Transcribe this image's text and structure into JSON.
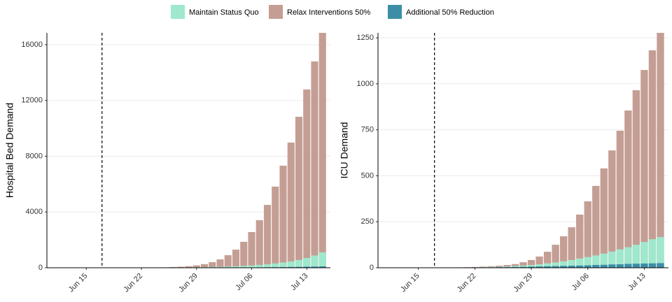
{
  "chart_data": [
    {
      "type": "bar",
      "y_label": "Hospital Bed Demand",
      "x": [
        "Jun 18",
        "Jun 19",
        "Jun 20",
        "Jun 21",
        "Jun 22",
        "Jun 23",
        "Jun 24",
        "Jun 25",
        "Jun 26",
        "Jun 27",
        "Jun 28",
        "Jun 29",
        "Jun 30",
        "Jul 01",
        "Jul 02",
        "Jul 03",
        "Jul 04",
        "Jul 05",
        "Jul 06",
        "Jul 07",
        "Jul 08",
        "Jul 09",
        "Jul 10",
        "Jul 11",
        "Jul 12",
        "Jul 13",
        "Jul 14",
        "Jul 15"
      ],
      "series": [
        {
          "name": "Maintain Status Quo",
          "color": "#9fe8cd",
          "values": [
            1,
            1,
            2,
            3,
            4,
            6,
            8,
            11,
            15,
            20,
            26,
            34,
            44,
            56,
            71,
            89,
            110,
            135,
            165,
            205,
            250,
            310,
            380,
            460,
            560,
            700,
            880,
            1100
          ]
        },
        {
          "name": "Relax Interventions 50%",
          "color": "#c49e94",
          "values": [
            1,
            2,
            3,
            4,
            7,
            11,
            18,
            28,
            45,
            70,
            110,
            170,
            260,
            400,
            600,
            900,
            1300,
            1860,
            2560,
            3410,
            4510,
            5820,
            7320,
            8980,
            10830,
            12790,
            14800,
            16850
          ]
        },
        {
          "name": "Additional 50% Reduction",
          "color": "#3c8ea6",
          "values": [
            0,
            0,
            0,
            1,
            1,
            1,
            2,
            2,
            3,
            4,
            5,
            6,
            7,
            9,
            11,
            13,
            16,
            19,
            23,
            27,
            32,
            38,
            45,
            53,
            62,
            73,
            85,
            100
          ]
        }
      ],
      "xlim": [
        "Jun 10",
        "Jul 16"
      ],
      "xticks": [
        "Jun 15",
        "Jun 22",
        "Jun 29",
        "Jul 06",
        "Jul 13"
      ],
      "ylim": [
        0,
        16850
      ],
      "yticks": [
        0,
        4000,
        8000,
        12000,
        16000
      ],
      "vline": "Jun 17",
      "grid": true,
      "legend": "top"
    },
    {
      "type": "bar",
      "y_label": "ICU Demand",
      "x": [
        "Jun 18",
        "Jun 19",
        "Jun 20",
        "Jun 21",
        "Jun 22",
        "Jun 23",
        "Jun 24",
        "Jun 25",
        "Jun 26",
        "Jun 27",
        "Jun 28",
        "Jun 29",
        "Jun 30",
        "Jul 01",
        "Jul 02",
        "Jul 03",
        "Jul 04",
        "Jul 05",
        "Jul 06",
        "Jul 07",
        "Jul 08",
        "Jul 09",
        "Jul 10",
        "Jul 11",
        "Jul 12",
        "Jul 13",
        "Jul 14",
        "Jul 15"
      ],
      "series": [
        {
          "color": "#9fe8cd",
          "values": [
            0,
            1,
            1,
            1,
            2,
            3,
            4,
            5,
            7,
            9,
            12,
            15,
            19,
            24,
            29,
            35,
            42,
            50,
            58,
            67,
            77,
            88,
            100,
            112,
            125,
            140,
            155,
            167
          ]
        },
        {
          "color": "#c49e94",
          "values": [
            1,
            1,
            2,
            3,
            4,
            6,
            8,
            11,
            15,
            20,
            30,
            42,
            61,
            87,
            125,
            171,
            220,
            289,
            361,
            445,
            540,
            638,
            745,
            855,
            965,
            1075,
            1182,
            1277
          ]
        },
        {
          "color": "#3c8ea6",
          "values": [
            0,
            0,
            1,
            1,
            1,
            2,
            2,
            3,
            3,
            4,
            5,
            6,
            7,
            8,
            9,
            10,
            11,
            12,
            13,
            15,
            16,
            18,
            19,
            21,
            22,
            23,
            24,
            25
          ]
        }
      ],
      "xlim": [
        "Jun 10",
        "Jul 16"
      ],
      "xticks": [
        "Jun 15",
        "Jun 22",
        "Jun 29",
        "Jul 06",
        "Jul 13"
      ],
      "ylim": [
        0,
        1277
      ],
      "yticks": [
        0,
        250,
        500,
        750,
        1000,
        1250
      ],
      "vline": "Jun 17",
      "grid": true
    }
  ]
}
